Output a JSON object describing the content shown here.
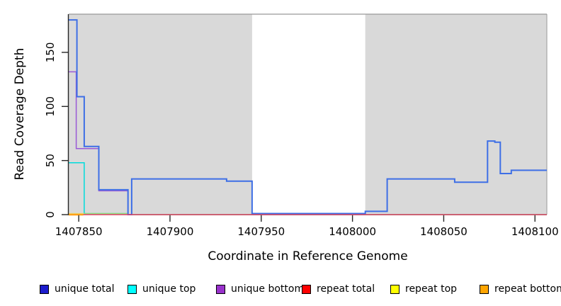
{
  "chart_data": {
    "type": "line",
    "subtype": "step",
    "title": "",
    "xlabel": "Coordinate in Reference Genome",
    "ylabel": "Read Coverage Depth",
    "xlim": [
      1407844.5,
      1408106.5
    ],
    "ylim": [
      0,
      185.3
    ],
    "x_ticks": [
      1407850,
      1407900,
      1407950,
      1408000,
      1408050,
      1408100
    ],
    "y_ticks": [
      0,
      50,
      100,
      150
    ],
    "grid": "off",
    "plot_bg_color": "#d9d9d9",
    "axis_color": "#262626",
    "border_color": "#999999",
    "uncovered_region": {
      "x_start": 1407945,
      "x_end": 1408007,
      "color": "#ffffff"
    },
    "series": [
      {
        "name": "unique total",
        "color": "#3e6fe6",
        "width": 2,
        "steps": [
          [
            1407844.5,
            180
          ],
          [
            1407849,
            109
          ],
          [
            1407853,
            63
          ],
          [
            1407861,
            23
          ],
          [
            1407877,
            0
          ],
          [
            1407879,
            33
          ],
          [
            1407931,
            31
          ],
          [
            1407945,
            1
          ],
          [
            1408007,
            3
          ],
          [
            1408019,
            33
          ],
          [
            1408056,
            30
          ],
          [
            1408074,
            68
          ],
          [
            1408078,
            67
          ],
          [
            1408081,
            38
          ],
          [
            1408087,
            41
          ]
        ]
      },
      {
        "name": "unique top",
        "color": "#00dcdc",
        "width": 1.5,
        "steps": [
          [
            1407844.5,
            48
          ],
          [
            1407853,
            1
          ],
          [
            1407877,
            0
          ]
        ]
      },
      {
        "name": "unique bottom",
        "color": "#9959d6",
        "width": 1.5,
        "steps": [
          [
            1407844.5,
            132
          ],
          [
            1407848.6,
            61
          ],
          [
            1407861,
            22
          ],
          [
            1407877,
            0
          ]
        ]
      },
      {
        "name": "repeat total",
        "color": "#e04060",
        "width": 1.5,
        "steps": [
          [
            1407844.5,
            0
          ]
        ]
      },
      {
        "name": "repeat top",
        "color": "#eee040",
        "width": 1.5,
        "opacity": 0.6,
        "steps": [
          [
            1407844.5,
            1
          ],
          [
            1407877,
            0
          ]
        ]
      },
      {
        "name": "repeat bottom",
        "color": "#ffa018",
        "width": 2.5,
        "x_end": 1407852.5,
        "steps": [
          [
            1407844.5,
            0
          ]
        ]
      }
    ],
    "legend": [
      {
        "label": "unique total",
        "color": "#1c1ccd"
      },
      {
        "label": "unique top",
        "color": "#00ffff"
      },
      {
        "label": "unique bottom",
        "color": "#9932cc"
      },
      {
        "label": "repeat total",
        "color": "#ff0000"
      },
      {
        "label": "repeat top",
        "color": "#ffff00"
      },
      {
        "label": "repeat bottom",
        "color": "#ffa500"
      }
    ],
    "legend_position": "bottom"
  }
}
